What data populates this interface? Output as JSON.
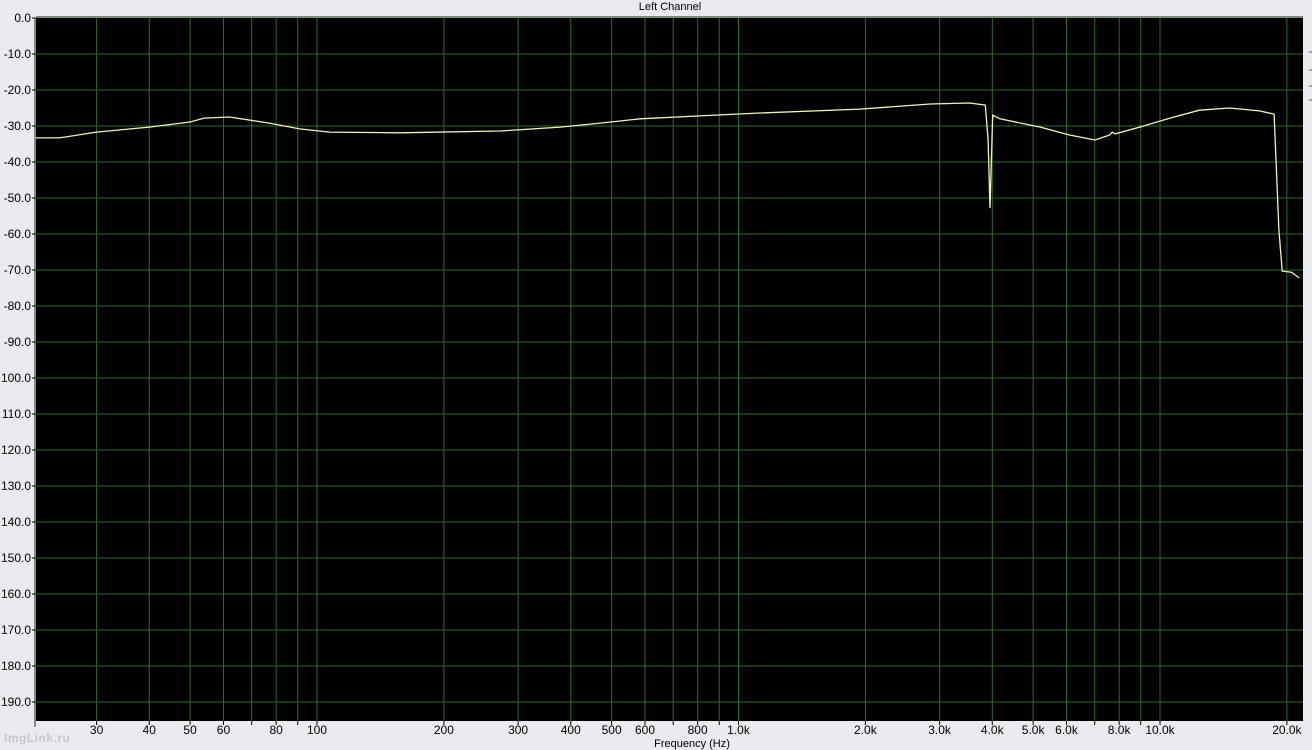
{
  "chart_data": {
    "type": "line",
    "title": "Left Channel",
    "xlabel": "Frequency (Hz)",
    "ylabel": "",
    "x_scale": "log",
    "xlim": [
      21.5,
      21800
    ],
    "ylim": [
      -195,
      0
    ],
    "grid": true,
    "y_ticks": [
      0,
      -10,
      -20,
      -30,
      -40,
      -50,
      -60,
      -70,
      -80,
      -90,
      -100,
      -110,
      -120,
      -130,
      -140,
      -150,
      -160,
      -170,
      -180,
      -190
    ],
    "y_tick_labels": [
      "0.0",
      "-10.0",
      "-20.0",
      "-30.0",
      "-40.0",
      "-50.0",
      "-60.0",
      "-70.0",
      "-80.0",
      "-90.0",
      "100.0",
      "110.0",
      "120.0",
      "130.0",
      "140.0",
      "150.0",
      "160.0",
      "170.0",
      "180.0",
      "190.0"
    ],
    "x_ticks": [
      {
        "value": 30,
        "label": "30"
      },
      {
        "value": 40,
        "label": "40"
      },
      {
        "value": 50,
        "label": "50"
      },
      {
        "value": 60,
        "label": "60"
      },
      {
        "value": 70,
        "label": ""
      },
      {
        "value": 80,
        "label": "80"
      },
      {
        "value": 90,
        "label": ""
      },
      {
        "value": 100,
        "label": "100"
      },
      {
        "value": 200,
        "label": "200"
      },
      {
        "value": 300,
        "label": "300"
      },
      {
        "value": 400,
        "label": "400"
      },
      {
        "value": 500,
        "label": "500"
      },
      {
        "value": 600,
        "label": "600"
      },
      {
        "value": 700,
        "label": ""
      },
      {
        "value": 800,
        "label": "800"
      },
      {
        "value": 900,
        "label": ""
      },
      {
        "value": 1000,
        "label": "1.0k"
      },
      {
        "value": 2000,
        "label": "2.0k"
      },
      {
        "value": 3000,
        "label": "3.0k"
      },
      {
        "value": 4000,
        "label": "4.0k"
      },
      {
        "value": 5000,
        "label": "5.0k"
      },
      {
        "value": 6000,
        "label": "6.0k"
      },
      {
        "value": 7000,
        "label": ""
      },
      {
        "value": 8000,
        "label": "8.0k"
      },
      {
        "value": 9000,
        "label": ""
      },
      {
        "value": 10000,
        "label": "10.0k"
      },
      {
        "value": 20000,
        "label": "20.0k"
      }
    ],
    "series": [
      {
        "color": "#f4f4b4",
        "x": [
          21.5,
          24.5,
          30,
          40,
          50,
          54,
          62,
          77,
          91,
          107,
          157,
          272,
          378,
          470,
          584,
          810,
          1125,
          1940,
          2850,
          3530,
          3850,
          3910,
          3950,
          4010,
          4170,
          5200,
          6100,
          7010,
          7600,
          7700,
          7830,
          8950,
          10560,
          12400,
          14630,
          17200,
          18650,
          18850,
          19150,
          19500,
          20500,
          21400
        ],
        "y": [
          -33.3,
          -33.3,
          -31.7,
          -30.3,
          -28.9,
          -27.8,
          -27.5,
          -29.2,
          -30.8,
          -31.7,
          -31.9,
          -31.4,
          -30.3,
          -29.2,
          -28.0,
          -27.2,
          -26.4,
          -25.3,
          -23.9,
          -23.6,
          -24.2,
          -33.9,
          -52.8,
          -27.0,
          -28.0,
          -30.3,
          -32.5,
          -33.9,
          -32.5,
          -31.7,
          -32.2,
          -30.3,
          -27.8,
          -25.6,
          -25.0,
          -25.8,
          -26.7,
          -39.4,
          -58.9,
          -70.3,
          -70.6,
          -72.2
        ]
      }
    ],
    "colors": {
      "plot_background": "#000000",
      "grid": "#2e6a2e",
      "page_background": "#ebeaef"
    }
  },
  "watermark": "ImgLink.ru"
}
